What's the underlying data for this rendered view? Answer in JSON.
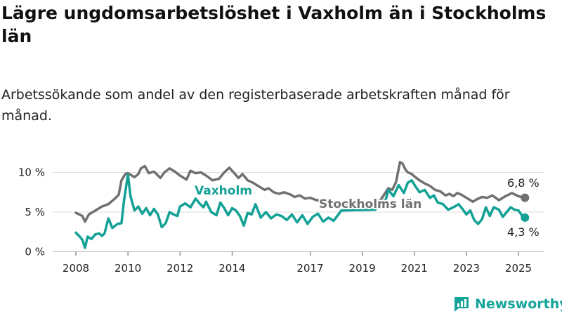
{
  "title": "Lägre ungdomsarbetslöshet i Vaxholm än i Stockholms län",
  "subtitle": "Arbetssökande som andel av den registerbaserade arbetskraften månad för månad.",
  "logo": {
    "name": "Newsworthy",
    "icon": "newsworthy-chart-icon"
  },
  "colors": {
    "vaxholm": "#13a196",
    "stockholm": "#707070",
    "grid": "#dddddd"
  },
  "chart_data": {
    "type": "line",
    "title": "Lägre ungdomsarbetslöshet i Vaxholm än i Stockholms län",
    "subtitle": "Arbetssökande som andel av den registerbaserade arbetskraften månad för månad.",
    "xlabel": "",
    "ylabel": "",
    "xlim": [
      2007.6,
      2025.8
    ],
    "ylim": [
      0,
      10
    ],
    "yticks": [
      0,
      5,
      10
    ],
    "ytick_labels": [
      "0 %",
      "5 %",
      "10 %"
    ],
    "xticks": [
      2008,
      2010,
      2012,
      2014,
      2017,
      2019,
      2021,
      2023,
      2025
    ],
    "xtick_labels": [
      "2008",
      "2010",
      "2012",
      "2014",
      "2017",
      "2019",
      "2021",
      "2023",
      "2025"
    ],
    "grid": true,
    "legend": "inline labels",
    "series": [
      {
        "name": "Stockholms län",
        "color": "#707070",
        "end_label": "6,8 %",
        "points": [
          [
            2008.0,
            4.9
          ],
          [
            2008.25,
            4.5
          ],
          [
            2008.35,
            3.8
          ],
          [
            2008.5,
            4.7
          ],
          [
            2008.75,
            5.2
          ],
          [
            2009.0,
            5.7
          ],
          [
            2009.25,
            6.0
          ],
          [
            2009.5,
            6.7
          ],
          [
            2009.65,
            7.2
          ],
          [
            2009.75,
            9.0
          ],
          [
            2009.9,
            9.8
          ],
          [
            2010.0,
            9.9
          ],
          [
            2010.25,
            9.4
          ],
          [
            2010.4,
            9.8
          ],
          [
            2010.5,
            10.5
          ],
          [
            2010.65,
            10.8
          ],
          [
            2010.8,
            9.9
          ],
          [
            2011.0,
            10.1
          ],
          [
            2011.25,
            9.3
          ],
          [
            2011.4,
            10.0
          ],
          [
            2011.6,
            10.5
          ],
          [
            2011.8,
            10.1
          ],
          [
            2012.0,
            9.6
          ],
          [
            2012.25,
            9.1
          ],
          [
            2012.4,
            10.2
          ],
          [
            2012.6,
            9.9
          ],
          [
            2012.8,
            10.0
          ],
          [
            2013.0,
            9.6
          ],
          [
            2013.25,
            9.0
          ],
          [
            2013.5,
            9.2
          ],
          [
            2013.7,
            10.0
          ],
          [
            2013.9,
            10.6
          ],
          [
            2014.0,
            10.2
          ],
          [
            2014.25,
            9.3
          ],
          [
            2014.4,
            9.8
          ],
          [
            2014.6,
            9.0
          ],
          [
            2014.8,
            8.7
          ],
          [
            2015.0,
            8.3
          ],
          [
            2015.25,
            7.8
          ],
          [
            2015.4,
            8.0
          ],
          [
            2015.6,
            7.5
          ],
          [
            2015.8,
            7.3
          ],
          [
            2016.0,
            7.5
          ],
          [
            2016.25,
            7.2
          ],
          [
            2016.4,
            6.9
          ],
          [
            2016.6,
            7.1
          ],
          [
            2016.8,
            6.7
          ],
          [
            2017.0,
            6.8
          ],
          [
            2017.25,
            6.5
          ],
          [
            2017.5,
            6.4
          ],
          [
            2017.75,
            6.3
          ],
          [
            2018.0,
            6.1
          ],
          [
            2018.5,
            6.0
          ],
          [
            2019.0,
            5.9
          ],
          [
            2019.5,
            6.3
          ],
          [
            2019.7,
            6.5
          ],
          [
            2019.9,
            7.5
          ],
          [
            2020.0,
            8.0
          ],
          [
            2020.15,
            7.8
          ],
          [
            2020.3,
            8.8
          ],
          [
            2020.45,
            11.3
          ],
          [
            2020.55,
            11.1
          ],
          [
            2020.65,
            10.4
          ],
          [
            2020.75,
            10.0
          ],
          [
            2020.9,
            9.8
          ],
          [
            2021.0,
            9.5
          ],
          [
            2021.2,
            9.0
          ],
          [
            2021.4,
            8.6
          ],
          [
            2021.6,
            8.3
          ],
          [
            2021.8,
            7.8
          ],
          [
            2022.0,
            7.6
          ],
          [
            2022.2,
            7.1
          ],
          [
            2022.35,
            7.3
          ],
          [
            2022.5,
            7.0
          ],
          [
            2022.65,
            7.4
          ],
          [
            2022.8,
            7.2
          ],
          [
            2023.0,
            6.8
          ],
          [
            2023.25,
            6.3
          ],
          [
            2023.4,
            6.6
          ],
          [
            2023.6,
            6.9
          ],
          [
            2023.8,
            6.8
          ],
          [
            2024.0,
            7.1
          ],
          [
            2024.25,
            6.5
          ],
          [
            2024.5,
            7.0
          ],
          [
            2024.75,
            7.4
          ],
          [
            2025.0,
            7.0
          ],
          [
            2025.25,
            6.8
          ]
        ]
      },
      {
        "name": "Vaxholm",
        "color": "#13a196",
        "end_label": "4,3 %",
        "points": [
          [
            2008.0,
            2.4
          ],
          [
            2008.15,
            1.9
          ],
          [
            2008.25,
            1.5
          ],
          [
            2008.35,
            0.5
          ],
          [
            2008.45,
            1.9
          ],
          [
            2008.6,
            1.6
          ],
          [
            2008.75,
            2.2
          ],
          [
            2008.9,
            2.3
          ],
          [
            2009.0,
            2.0
          ],
          [
            2009.1,
            2.3
          ],
          [
            2009.25,
            4.2
          ],
          [
            2009.4,
            3.0
          ],
          [
            2009.6,
            3.5
          ],
          [
            2009.75,
            3.6
          ],
          [
            2009.85,
            6.5
          ],
          [
            2010.0,
            9.7
          ],
          [
            2010.1,
            7.0
          ],
          [
            2010.25,
            5.2
          ],
          [
            2010.4,
            5.7
          ],
          [
            2010.55,
            4.8
          ],
          [
            2010.7,
            5.5
          ],
          [
            2010.85,
            4.6
          ],
          [
            2011.0,
            5.4
          ],
          [
            2011.15,
            4.7
          ],
          [
            2011.3,
            3.1
          ],
          [
            2011.45,
            3.6
          ],
          [
            2011.6,
            5.0
          ],
          [
            2011.75,
            4.7
          ],
          [
            2011.9,
            4.5
          ],
          [
            2012.0,
            5.7
          ],
          [
            2012.2,
            6.1
          ],
          [
            2012.4,
            5.6
          ],
          [
            2012.6,
            6.7
          ],
          [
            2012.75,
            6.1
          ],
          [
            2012.9,
            5.6
          ],
          [
            2013.0,
            6.3
          ],
          [
            2013.2,
            5.0
          ],
          [
            2013.4,
            4.6
          ],
          [
            2013.55,
            6.2
          ],
          [
            2013.7,
            5.5
          ],
          [
            2013.85,
            4.6
          ],
          [
            2014.0,
            5.5
          ],
          [
            2014.15,
            5.2
          ],
          [
            2014.3,
            4.5
          ],
          [
            2014.45,
            3.3
          ],
          [
            2014.6,
            4.9
          ],
          [
            2014.75,
            4.7
          ],
          [
            2014.9,
            6.0
          ],
          [
            2015.1,
            4.3
          ],
          [
            2015.3,
            5.0
          ],
          [
            2015.5,
            4.2
          ],
          [
            2015.7,
            4.7
          ],
          [
            2015.9,
            4.5
          ],
          [
            2016.1,
            4.0
          ],
          [
            2016.3,
            4.7
          ],
          [
            2016.5,
            3.7
          ],
          [
            2016.7,
            4.6
          ],
          [
            2016.9,
            3.5
          ],
          [
            2017.1,
            4.4
          ],
          [
            2017.3,
            4.8
          ],
          [
            2017.5,
            3.8
          ],
          [
            2017.7,
            4.3
          ],
          [
            2017.9,
            3.9
          ],
          [
            2018.2,
            5.2
          ],
          [
            2019.5,
            5.3
          ],
          [
            2019.7,
            6.3
          ],
          [
            2019.9,
            6.5
          ],
          [
            2020.0,
            7.8
          ],
          [
            2020.2,
            7.0
          ],
          [
            2020.4,
            8.4
          ],
          [
            2020.6,
            7.4
          ],
          [
            2020.75,
            8.7
          ],
          [
            2020.9,
            9.0
          ],
          [
            2021.05,
            8.2
          ],
          [
            2021.2,
            7.5
          ],
          [
            2021.4,
            7.8
          ],
          [
            2021.6,
            6.8
          ],
          [
            2021.75,
            7.1
          ],
          [
            2021.9,
            6.2
          ],
          [
            2022.1,
            6.0
          ],
          [
            2022.3,
            5.3
          ],
          [
            2022.5,
            5.6
          ],
          [
            2022.7,
            6.0
          ],
          [
            2022.85,
            5.4
          ],
          [
            2023.0,
            4.7
          ],
          [
            2023.15,
            5.2
          ],
          [
            2023.3,
            4.0
          ],
          [
            2023.45,
            3.5
          ],
          [
            2023.6,
            4.1
          ],
          [
            2023.75,
            5.6
          ],
          [
            2023.9,
            4.5
          ],
          [
            2024.05,
            5.6
          ],
          [
            2024.25,
            5.3
          ],
          [
            2024.4,
            4.4
          ],
          [
            2024.55,
            5.0
          ],
          [
            2024.7,
            5.6
          ],
          [
            2024.85,
            5.3
          ],
          [
            2025.0,
            5.2
          ],
          [
            2025.15,
            4.5
          ],
          [
            2025.25,
            4.3
          ]
        ]
      }
    ],
    "annotations": [
      {
        "text": "Vaxholm",
        "series": "Vaxholm"
      },
      {
        "text": "Stockholms län",
        "series": "Stockholms län"
      }
    ]
  }
}
